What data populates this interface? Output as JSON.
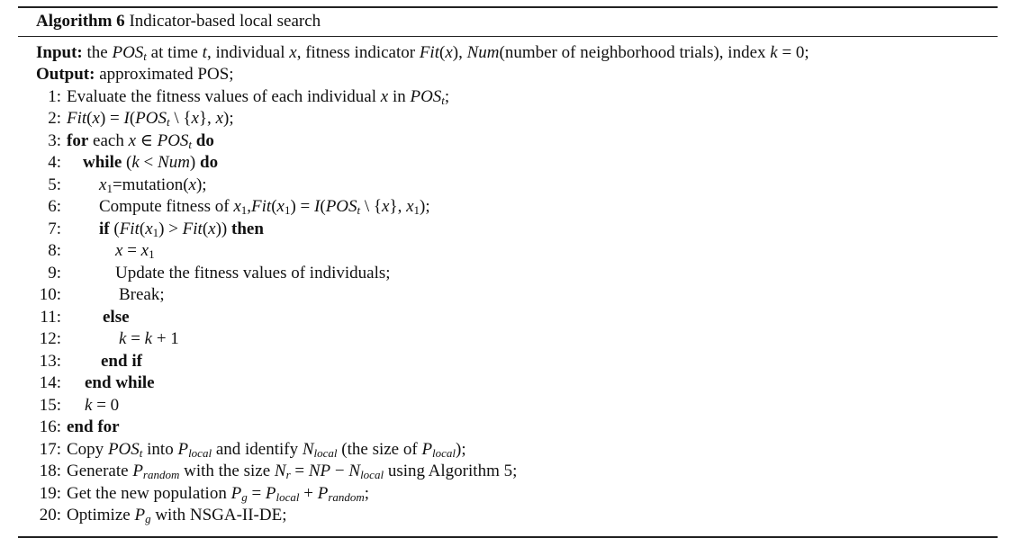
{
  "algorithm": {
    "label": "Algorithm 6",
    "name": "Indicator-based local search"
  },
  "input": {
    "keyword": "Input:",
    "text": "the POS_t at time t, individual x, fitness indicator Fit(x), Num(number of neighborhood trials), index k = 0;"
  },
  "output": {
    "keyword": "Output:",
    "text": "approximated POS;"
  },
  "steps": [
    {
      "num": "1:",
      "text": "Evaluate the fitness values of each individual x in POS_t;"
    },
    {
      "num": "2:",
      "text": "Fit(x) = I(POS_t \\ {x}, x);"
    },
    {
      "num": "3:",
      "text": "for each x ∈ POS_t do"
    },
    {
      "num": "4:",
      "text": "while (k < Num) do"
    },
    {
      "num": "5:",
      "text": "x_1=mutation(x);"
    },
    {
      "num": "6:",
      "text": "Compute fitness of x_1,Fit(x_1) = I(POS_t \\ {x}, x_1);"
    },
    {
      "num": "7:",
      "text": "if (Fit(x_1) > Fit(x)) then"
    },
    {
      "num": "8:",
      "text": "x = x_1"
    },
    {
      "num": "9:",
      "text": "Update the fitness values of individuals;"
    },
    {
      "num": "10:",
      "text": "Break;"
    },
    {
      "num": "11:",
      "text": "else"
    },
    {
      "num": "12:",
      "text": "k = k + 1"
    },
    {
      "num": "13:",
      "text": "end if"
    },
    {
      "num": "14:",
      "text": "end while"
    },
    {
      "num": "15:",
      "text": "k = 0"
    },
    {
      "num": "16:",
      "text": "end for"
    },
    {
      "num": "17:",
      "text": "Copy POS_t into P_local and identify N_local (the size of P_local);"
    },
    {
      "num": "18:",
      "text": "Generate P_random with the size N_r = NP − N_local using Algorithm 5;"
    },
    {
      "num": "19:",
      "text": "Get the new population P_g = P_local + P_random;"
    },
    {
      "num": "20:",
      "text": "Optimize P_g with NSGA-II-DE;"
    }
  ]
}
